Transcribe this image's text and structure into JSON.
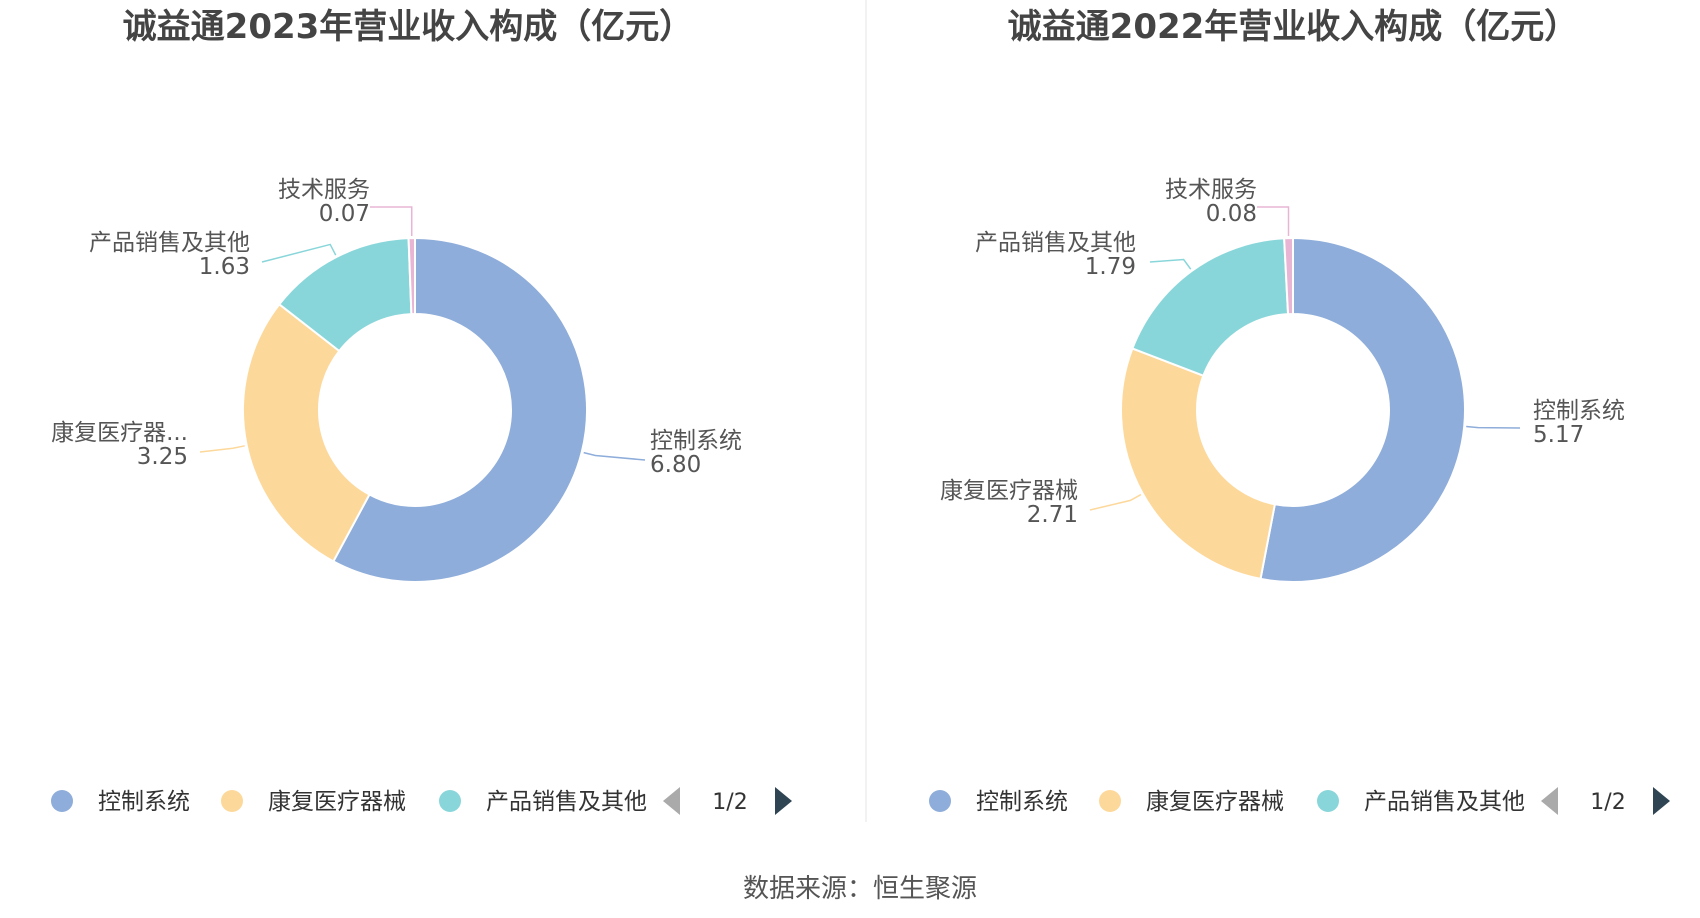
{
  "source": "数据来源：恒生聚源",
  "chart_data": [
    {
      "type": "pie",
      "title": "诚益通2023年营业收入构成（亿元）",
      "unit": "亿元",
      "slices": [
        {
          "name": "控制系统",
          "label": "控制系统",
          "value": 6.8,
          "value_label": "6.80",
          "color": "#8eadda"
        },
        {
          "name": "康复医疗器械",
          "label": "康复医疗器...",
          "value": 3.25,
          "value_label": "3.25",
          "color": "#fdd89b"
        },
        {
          "name": "产品销售及其他",
          "label": "产品销售及其他",
          "value": 1.63,
          "value_label": "1.63",
          "color": "#89d6da"
        },
        {
          "name": "技术服务",
          "label": "技术服务",
          "value": 0.07,
          "value_label": "0.07",
          "color": "#e8b5d4"
        }
      ],
      "legend": {
        "position": "bottom",
        "items": [
          "控制系统",
          "康复医疗器械",
          "产品销售及其他"
        ],
        "page": "1/2"
      }
    },
    {
      "type": "pie",
      "title": "诚益通2022年营业收入构成（亿元）",
      "unit": "亿元",
      "slices": [
        {
          "name": "控制系统",
          "label": "控制系统",
          "value": 5.17,
          "value_label": "5.17",
          "color": "#8eadda"
        },
        {
          "name": "康复医疗器械",
          "label": "康复医疗器械",
          "value": 2.71,
          "value_label": "2.71",
          "color": "#fdd89b"
        },
        {
          "name": "产品销售及其他",
          "label": "产品销售及其他",
          "value": 1.79,
          "value_label": "1.79",
          "color": "#89d6da"
        },
        {
          "name": "技术服务",
          "label": "技术服务",
          "value": 0.08,
          "value_label": "0.08",
          "color": "#e8b5d4"
        }
      ],
      "legend": {
        "position": "bottom",
        "items": [
          "控制系统",
          "康复医疗器械",
          "产品销售及其他"
        ],
        "page": "1/2"
      }
    }
  ],
  "colors": {
    "divider": "#eeeeee",
    "pager_active": "#2f4554",
    "pager_inactive": "#aaaaaa"
  }
}
